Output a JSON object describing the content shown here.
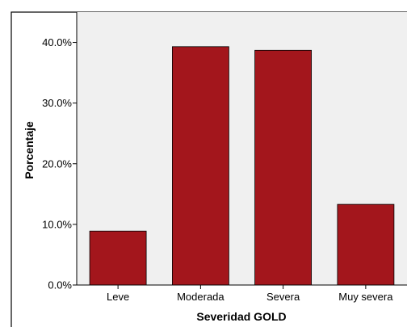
{
  "chart_data": {
    "type": "bar",
    "categories": [
      "Leve",
      "Moderada",
      "Severa",
      "Muy severa"
    ],
    "values": [
      8.9,
      39.3,
      38.7,
      13.3
    ],
    "title": "",
    "xlabel": "Severidad GOLD",
    "ylabel": "Porcentaje",
    "ylim": [
      0,
      45
    ],
    "yticks": [
      0,
      10,
      20,
      30,
      40
    ],
    "ytick_labels": [
      "0.0%",
      "10.0%",
      "20.0%",
      "30.0%",
      "40.0%"
    ],
    "grid": false,
    "legend": "none",
    "colors": {
      "bar": "#a3161c",
      "plot_background": "#f0f0f0",
      "page_background": "#ffffff",
      "axis": "#000000"
    }
  }
}
